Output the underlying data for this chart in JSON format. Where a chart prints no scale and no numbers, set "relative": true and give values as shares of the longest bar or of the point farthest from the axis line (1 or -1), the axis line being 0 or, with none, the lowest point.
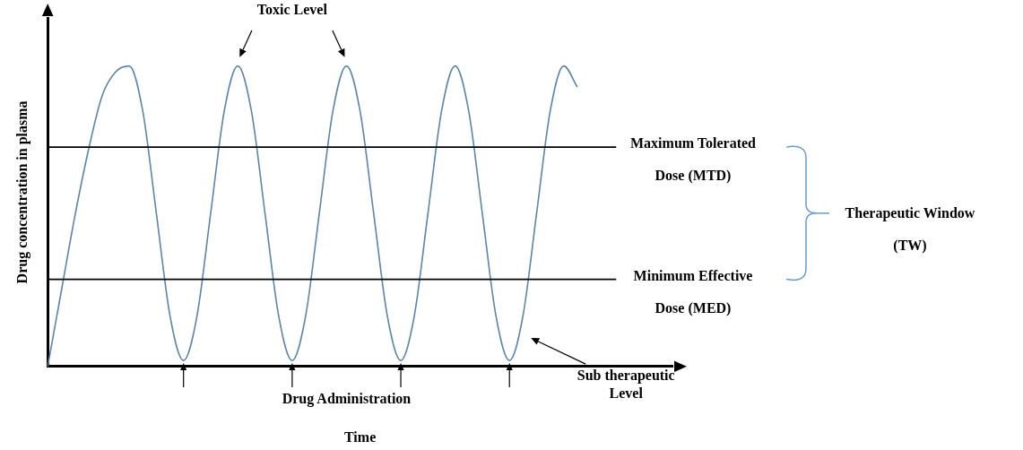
{
  "chart_data": {
    "type": "line",
    "xlabel": "Time",
    "ylabel": "Drug concentration in plasma",
    "relative": true,
    "legend": false,
    "grid": false,
    "tick_labels": false,
    "marker": "none",
    "line_style": "solid",
    "categories": [
      null,
      null,
      null,
      null,
      null,
      null,
      null,
      null,
      null,
      null,
      null,
      null,
      null,
      null,
      null,
      null,
      null,
      null,
      null,
      null,
      null,
      null,
      null,
      null,
      null,
      null,
      null,
      null,
      null,
      null,
      null,
      null,
      null,
      null,
      null,
      null,
      null,
      null,
      null,
      null,
      null,
      null,
      null,
      null,
      null,
      null,
      null
    ],
    "series": [
      {
        "color": "#5b84a8",
        "values": [
          0,
          0.25,
          0.5,
          0.72,
          0.9,
          0.98,
          1,
          0.85,
          0.51,
          0.17,
          0.02,
          0.17,
          0.51,
          0.85,
          1,
          0.85,
          0.51,
          0.17,
          0.02,
          0.17,
          0.51,
          0.85,
          1,
          0.85,
          0.51,
          0.17,
          0.02,
          0.17,
          0.51,
          0.85,
          1,
          0.85,
          0.51,
          0.17,
          0.02,
          0.17,
          0.51,
          0.85,
          1,
          0.93,
          null,
          null,
          null,
          null,
          null,
          null,
          null
        ]
      }
    ],
    "ref_lines": [
      {
        "axis": "y",
        "value": 0.73,
        "label": "Maximum Tolerated Dose (MTD)",
        "color": "#000000"
      },
      {
        "axis": "y",
        "value": 0.29,
        "label": "Minimum Effective Dose (MED)",
        "color": "#000000"
      }
    ],
    "annotations": [
      "Toxic Level",
      "Drug Administration",
      "Sub therapeutic Level",
      "Therapeutic Window (TW)"
    ]
  }
}
